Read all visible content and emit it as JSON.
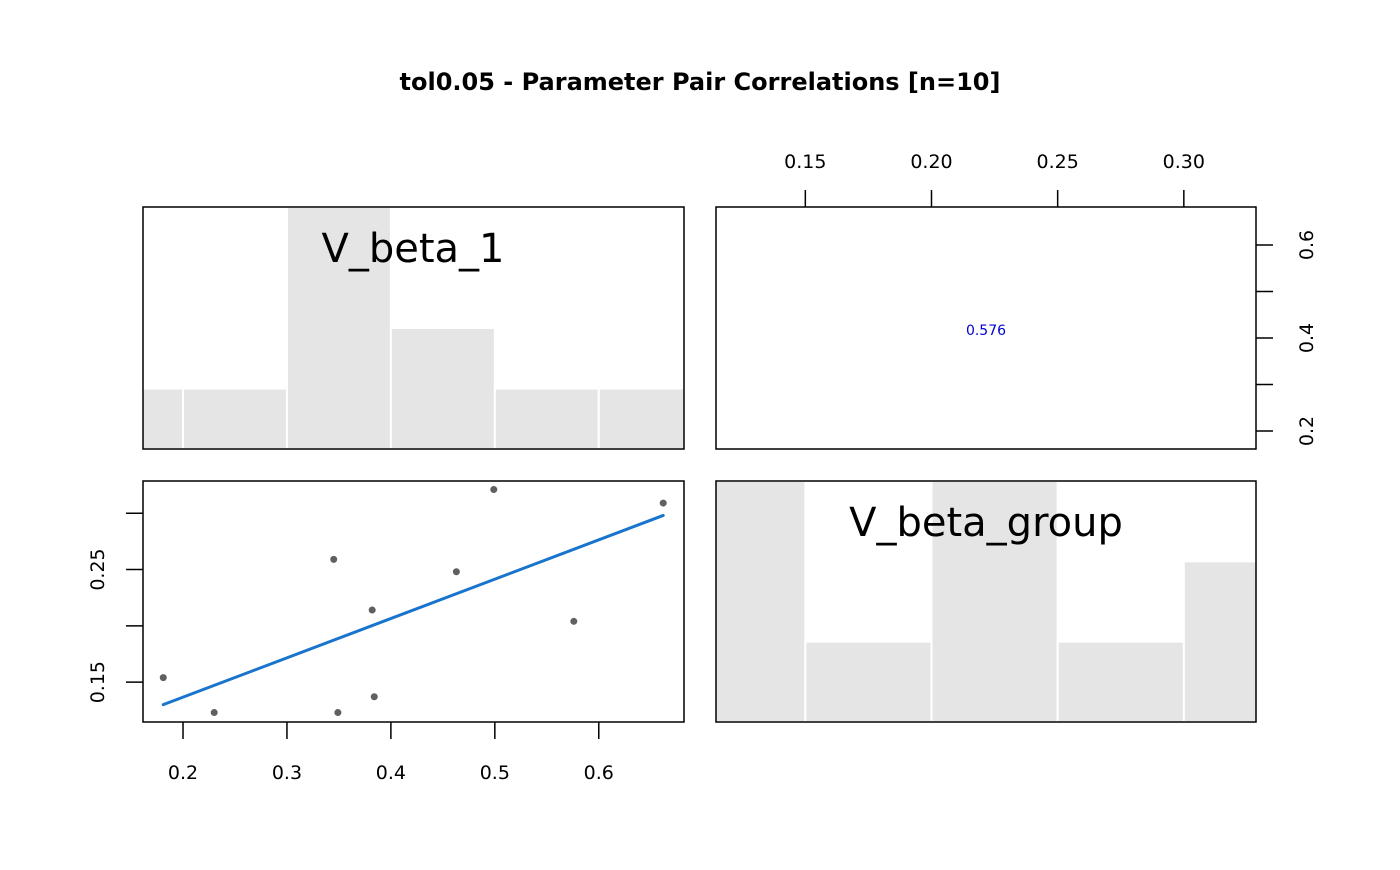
{
  "chart_data": {
    "type": "scatter",
    "title": "tol0.05 - Parameter Pair Correlations [n=10]",
    "variables": [
      "V_beta_1",
      "V_beta_group"
    ],
    "points": {
      "V_beta_1": [
        0.181,
        0.23,
        0.345,
        0.349,
        0.382,
        0.384,
        0.463,
        0.499,
        0.576,
        0.662
      ],
      "V_beta_group": [
        0.154,
        0.123,
        0.259,
        0.123,
        0.214,
        0.137,
        0.248,
        0.321,
        0.204,
        0.309
      ]
    },
    "fit_line": {
      "x": [
        0.181,
        0.662
      ],
      "y": [
        0.13,
        0.298
      ],
      "color": "#1874CD"
    },
    "correlation": {
      "label": "0.576",
      "color": "#0000CD"
    },
    "histograms": {
      "V_beta_1": {
        "breaks": [
          0.1,
          0.2,
          0.3,
          0.4,
          0.5,
          0.6,
          0.7
        ],
        "counts": [
          1,
          1,
          4,
          2,
          1,
          1
        ]
      },
      "V_beta_group": {
        "breaks": [
          0.1,
          0.15,
          0.2,
          0.25,
          0.3,
          0.35
        ],
        "counts": [
          3,
          1,
          3,
          1,
          2
        ]
      }
    },
    "axes": {
      "V_beta_1": {
        "range": [
          0.1615,
          0.682
        ],
        "ticks": [
          0.2,
          0.3,
          0.4,
          0.5,
          0.6
        ],
        "tick_labels": [
          "0.2",
          "0.3",
          "0.4",
          "0.5",
          "0.6"
        ],
        "y_ticks": [
          0.2,
          0.3,
          0.4,
          0.5,
          0.6
        ],
        "y_tick_labels": [
          "0.2",
          "0.4",
          "0.6"
        ],
        "y_labeled": [
          0.2,
          0.4,
          0.6
        ]
      },
      "V_beta_group": {
        "range": [
          0.1146,
          0.3286
        ],
        "ticks": [
          0.15,
          0.2,
          0.25,
          0.3
        ],
        "tick_labels": [
          "0.15",
          "0.20",
          "0.25",
          "0.30"
        ],
        "y_ticks": [
          0.15,
          0.2,
          0.25,
          0.3
        ],
        "y_tick_labels": [
          "0.15",
          "0.25"
        ],
        "y_labeled": [
          0.15,
          0.25
        ]
      }
    },
    "colors": {
      "points": "#606060",
      "bars": "#E5E5E5"
    }
  }
}
